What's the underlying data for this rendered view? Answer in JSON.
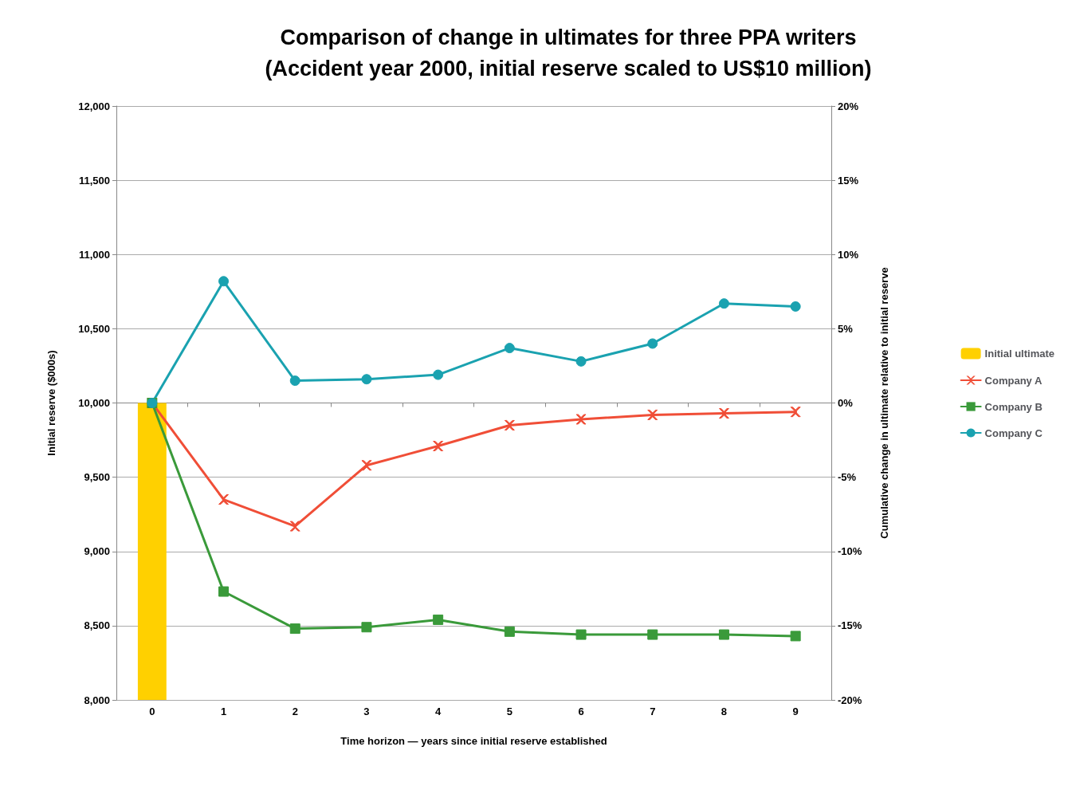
{
  "chart_data": {
    "type": "line",
    "title": "Comparison of change in ultimates for three PPA writers",
    "subtitle": "(Accident year 2000, initial reserve scaled to US$10 million)",
    "xlabel": "Time horizon — years since initial reserve established",
    "ylabel": "Initial reserve ($000s)",
    "y2label": "Cumulative change in ultimate relative to initial reserve",
    "categories": [
      "0",
      "1",
      "2",
      "3",
      "4",
      "5",
      "6",
      "7",
      "8",
      "9"
    ],
    "series": [
      {
        "name": "Initial ultimate",
        "type": "bar",
        "color": "#ffd000",
        "values": [
          10000,
          null,
          null,
          null,
          null,
          null,
          null,
          null,
          null,
          null
        ]
      },
      {
        "name": "Company A",
        "color": "#f04e37",
        "marker": "cross",
        "values": [
          10000,
          9350,
          9170,
          9580,
          9710,
          9850,
          9890,
          9920,
          9930,
          9940
        ]
      },
      {
        "name": "Company B",
        "color": "#3a9a3a",
        "marker": "square",
        "values": [
          10000,
          8730,
          8480,
          8490,
          8540,
          8460,
          8440,
          8440,
          8440,
          8430
        ]
      },
      {
        "name": "Company C",
        "color": "#1aa2b0",
        "marker": "circle",
        "values": [
          10000,
          10820,
          10150,
          10160,
          10190,
          10370,
          10280,
          10400,
          10670,
          10650
        ]
      }
    ],
    "ylim": [
      8000,
      12000
    ],
    "yticks": [
      {
        "value": 8000,
        "label": "8,000"
      },
      {
        "value": 8500,
        "label": "8,500"
      },
      {
        "value": 9000,
        "label": "9,000"
      },
      {
        "value": 9500,
        "label": "9,500"
      },
      {
        "value": 10000,
        "label": "10,000"
      },
      {
        "value": 10500,
        "label": "10,500"
      },
      {
        "value": 11000,
        "label": "11,000"
      },
      {
        "value": 11500,
        "label": "11,500"
      },
      {
        "value": 12000,
        "label": "12,000"
      }
    ],
    "y2lim": [
      -20,
      20
    ],
    "y2ticks": [
      {
        "value": -20,
        "label": "-20%"
      },
      {
        "value": -15,
        "label": "-15%"
      },
      {
        "value": -10,
        "label": "-10%"
      },
      {
        "value": -5,
        "label": "-5%"
      },
      {
        "value": 0,
        "label": "0%"
      },
      {
        "value": 5,
        "label": "5%"
      },
      {
        "value": 10,
        "label": "10%"
      },
      {
        "value": 15,
        "label": "15%"
      },
      {
        "value": 20,
        "label": "20%"
      }
    ],
    "grid": "y",
    "legend": "right",
    "line_style": "solid"
  }
}
